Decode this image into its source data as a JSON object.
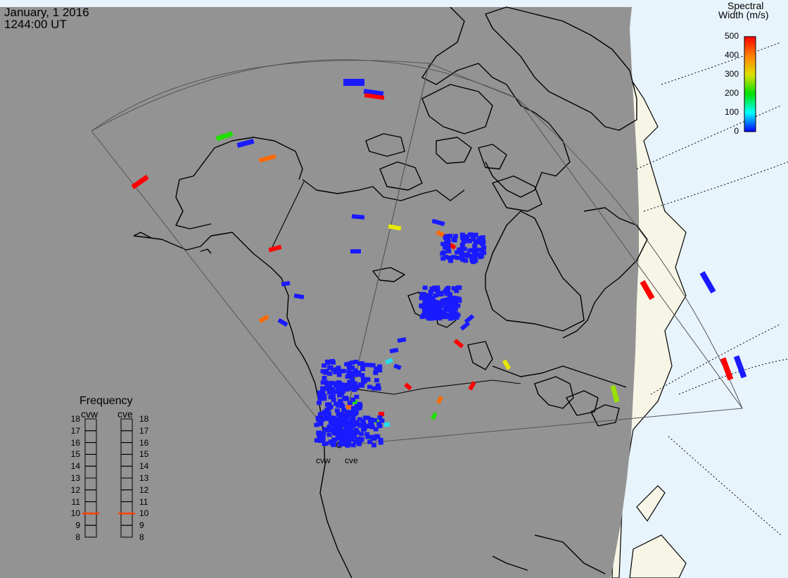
{
  "header": {
    "date": "January, 1 2016",
    "time": "1244:00 UT"
  },
  "colorbar": {
    "title_line1": "Spectral",
    "title_line2": "Width (m/s)",
    "ticks": [
      "500",
      "400",
      "300",
      "200",
      "100",
      "0"
    ],
    "range": [
      0,
      500
    ],
    "stops": [
      {
        "value": 0,
        "color": "#0000ff"
      },
      {
        "value": 100,
        "color": "#00ffff"
      },
      {
        "value": 200,
        "color": "#00e000"
      },
      {
        "value": 300,
        "color": "#e0e000"
      },
      {
        "value": 400,
        "color": "#ff8000"
      },
      {
        "value": 500,
        "color": "#ff0000"
      }
    ]
  },
  "frequency": {
    "title": "Frequency",
    "radars": [
      "cvw",
      "cve"
    ],
    "levels": [
      "18",
      "17",
      "16",
      "15",
      "14",
      "13",
      "12",
      "11",
      "10",
      "9",
      "8"
    ],
    "cvw_value": 10.5,
    "cve_value": 10.5,
    "marker_color": "#ff4000"
  },
  "radar_labels": {
    "cvw": "cvw",
    "cve": "cve"
  },
  "colors": {
    "night_shade": "#939393",
    "daylight_land": "#f7f5e6",
    "daylight_ocean": "#e8f4fc",
    "coast": "#000000",
    "grid_line": "#666666"
  }
}
